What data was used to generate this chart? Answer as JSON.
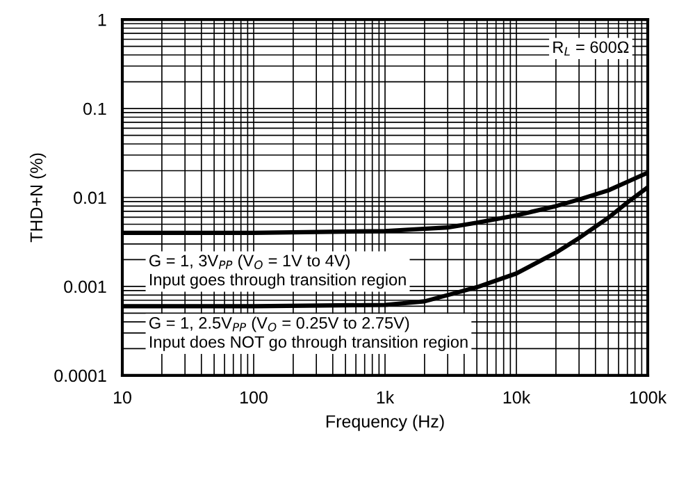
{
  "chart_data": {
    "type": "line",
    "xlabel": "Frequency (Hz)",
    "ylabel": "THD+N (%)",
    "log": "xy",
    "grid": true,
    "line_style": "solid",
    "marker": "none",
    "xlim": [
      10,
      100000
    ],
    "ylim": [
      0.0001,
      1
    ],
    "xticks": [
      10,
      100,
      {
        "value": 1000,
        "label": "1k"
      },
      {
        "value": 10000,
        "label": "10k"
      },
      {
        "value": 100000,
        "label": "100k"
      }
    ],
    "yticks": [
      {
        "value": 0.0001,
        "label": "0.0001"
      },
      0.001,
      0.01,
      0.1,
      1
    ],
    "series": [
      {
        "color": "#000000",
        "x": [
          10,
          100,
          1000,
          3000,
          5000,
          10000,
          20000,
          30000,
          50000,
          70000,
          100000
        ],
        "values": [
          0.004,
          0.004,
          0.0042,
          0.0046,
          0.0052,
          0.0063,
          0.008,
          0.0095,
          0.012,
          0.015,
          0.019
        ]
      },
      {
        "color": "#000000",
        "x": [
          10,
          100,
          1000,
          2000,
          3000,
          5000,
          10000,
          20000,
          30000,
          50000,
          70000,
          100000
        ],
        "values": [
          0.0006,
          0.0006,
          0.00062,
          0.00068,
          0.0008,
          0.00098,
          0.0014,
          0.0024,
          0.0035,
          0.0059,
          0.0088,
          0.013
        ]
      }
    ],
    "annotations": [
      "R$_{L}$ = 600Ω",
      "G = 1, 3V$_{PP}$ (V$_{O}$ = 1V to 4V)\nInput goes through transition region",
      "G = 1, 2.5V$_{PP}$ (V$_{O}$ = 0.25V to 2.75V)\nInput does NOT go through transition region"
    ]
  }
}
